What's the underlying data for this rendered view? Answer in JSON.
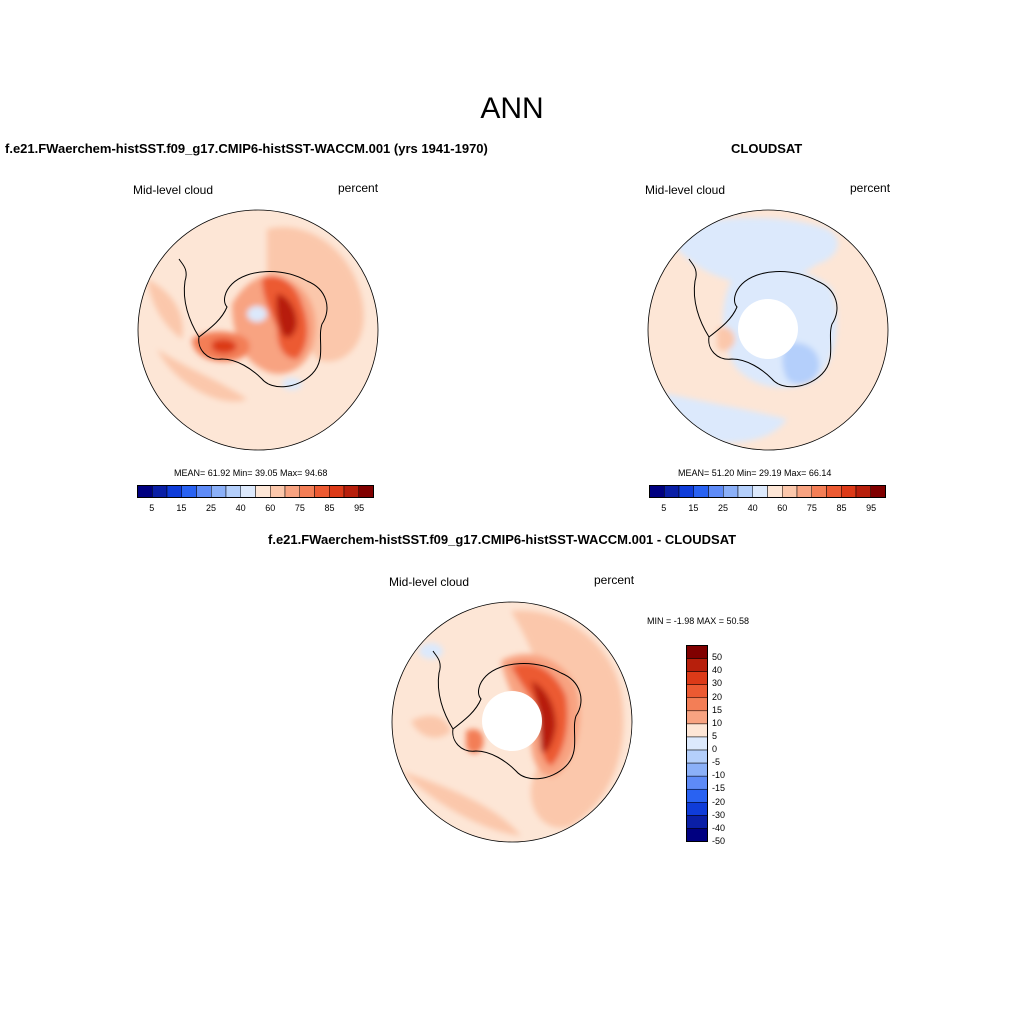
{
  "figure": {
    "title": "ANN",
    "colors": {
      "colorbar_abs": [
        "#000080",
        "#0a1fa6",
        "#0f3cd9",
        "#2962f2",
        "#5e8bf7",
        "#8bb0f8",
        "#b4cffb",
        "#dce9fc",
        "#fde6d6",
        "#fbc7ab",
        "#f8a381",
        "#f37e56",
        "#ec5a32",
        "#dc3a18",
        "#b71f0c",
        "#800000"
      ],
      "colorbar_diff": [
        "#800000",
        "#b71f0c",
        "#dc3a18",
        "#ec5a32",
        "#f37e56",
        "#f8a381",
        "#fde6d6",
        "#dce9fc",
        "#b4cffb",
        "#8bb0f8",
        "#5e8bf7",
        "#2962f2",
        "#0f3cd9",
        "#0a1fa6",
        "#000080"
      ]
    }
  },
  "panels": {
    "model": {
      "title": "f.e21.FWaerchem-histSST.f09_g17.CMIP6-histSST-WACCM.001 (yrs 1941-1970)",
      "left_label": "Mid-level cloud",
      "right_label": "percent",
      "stats": "MEAN=  61.92  Min=  39.05  Max=  94.68",
      "colorbar_ticks": [
        "5",
        "15",
        "25",
        "40",
        "60",
        "75",
        "85",
        "95"
      ]
    },
    "obs": {
      "title": "CLOUDSAT",
      "left_label": "Mid-level cloud",
      "right_label": "percent",
      "stats": "MEAN=  51.20  Min=  29.19  Max=  66.14",
      "colorbar_ticks": [
        "5",
        "15",
        "25",
        "40",
        "60",
        "75",
        "85",
        "95"
      ]
    },
    "diff": {
      "title": "f.e21.FWaerchem-histSST.f09_g17.CMIP6-histSST-WACCM.001 - CLOUDSAT",
      "left_label": "Mid-level cloud",
      "right_label": "percent",
      "stats": "MIN =  -1.98 MAX =  50.58",
      "colorbar_ticks": [
        "50",
        "40",
        "30",
        "20",
        "15",
        "10",
        "5",
        "0",
        "-5",
        "-10",
        "-15",
        "-20",
        "-30",
        "-40",
        "-50"
      ]
    }
  }
}
